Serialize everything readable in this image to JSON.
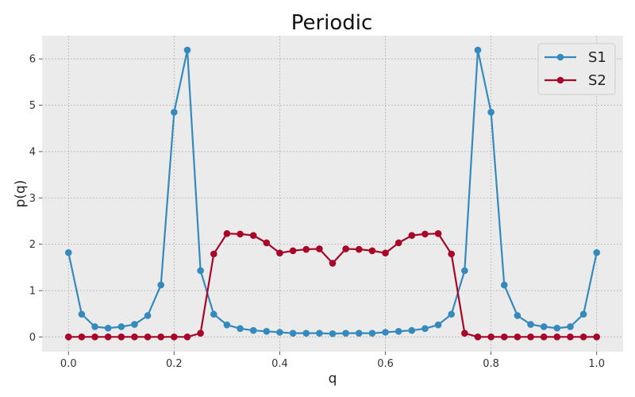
{
  "chart_data": {
    "type": "line",
    "title": "Periodic",
    "xlabel": "q",
    "ylabel": "p(q)",
    "xlim": [
      -0.05,
      1.05
    ],
    "ylim": [
      -0.32,
      6.5
    ],
    "xticks": [
      0.0,
      0.2,
      0.4,
      0.6,
      0.8,
      1.0
    ],
    "xtick_labels": [
      "0.0",
      "0.2",
      "0.4",
      "0.6",
      "0.8",
      "1.0"
    ],
    "yticks": [
      0,
      1,
      2,
      3,
      4,
      5,
      6
    ],
    "ytick_labels": [
      "0",
      "1",
      "2",
      "3",
      "4",
      "5",
      "6"
    ],
    "grid": true,
    "legend_position": "top-right",
    "x": [
      0.0,
      0.025,
      0.05,
      0.075,
      0.1,
      0.125,
      0.15,
      0.175,
      0.2,
      0.225,
      0.25,
      0.275,
      0.3,
      0.325,
      0.35,
      0.375,
      0.4,
      0.425,
      0.45,
      0.475,
      0.5,
      0.525,
      0.55,
      0.575,
      0.6,
      0.625,
      0.65,
      0.675,
      0.7,
      0.725,
      0.75,
      0.775,
      0.8,
      0.825,
      0.85,
      0.875,
      0.9,
      0.925,
      0.95,
      0.975,
      1.0
    ],
    "series": [
      {
        "name": "S1",
        "color": "#348ABD",
        "values": [
          1.82,
          0.49,
          0.22,
          0.19,
          0.22,
          0.27,
          0.46,
          1.12,
          4.85,
          6.19,
          1.43,
          0.49,
          0.26,
          0.18,
          0.14,
          0.12,
          0.1,
          0.08,
          0.08,
          0.08,
          0.07,
          0.08,
          0.08,
          0.08,
          0.1,
          0.12,
          0.14,
          0.18,
          0.26,
          0.49,
          1.43,
          6.19,
          4.85,
          1.12,
          0.46,
          0.27,
          0.22,
          0.19,
          0.22,
          0.49,
          1.82
        ]
      },
      {
        "name": "S2",
        "color": "#A60628",
        "values": [
          0.0,
          0.0,
          0.0,
          0.0,
          0.0,
          0.0,
          0.0,
          0.0,
          0.0,
          0.0,
          0.08,
          1.79,
          2.23,
          2.22,
          2.19,
          2.03,
          1.81,
          1.86,
          1.89,
          1.9,
          1.59,
          1.9,
          1.89,
          1.86,
          1.81,
          2.03,
          2.19,
          2.22,
          2.23,
          1.79,
          0.08,
          0.0,
          0.0,
          0.0,
          0.0,
          0.0,
          0.0,
          0.0,
          0.0,
          0.0,
          0.0
        ]
      }
    ]
  }
}
